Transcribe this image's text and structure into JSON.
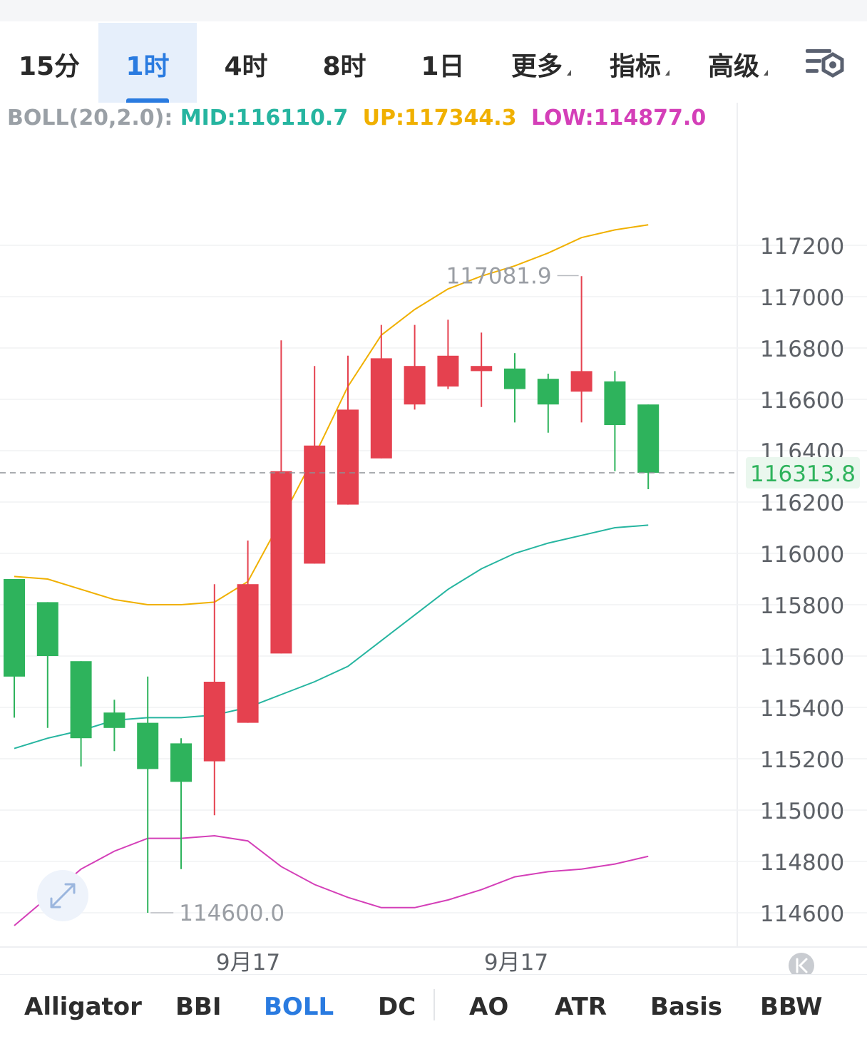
{
  "toolbar": {
    "tabs": [
      {
        "label": "15分"
      },
      {
        "label": "1时"
      },
      {
        "label": "4时"
      },
      {
        "label": "8时"
      },
      {
        "label": "1日"
      },
      {
        "label": "更多"
      },
      {
        "label": "指标"
      },
      {
        "label": "高级"
      }
    ],
    "active_tab": "1时"
  },
  "legend": {
    "name": "BOLL(20,2.0):",
    "mid": "MID:116110.7",
    "up": "UP:117344.3",
    "low": "LOW:114877.0"
  },
  "colors": {
    "up_candle": "#e5414f",
    "down_candle": "#2eb35c",
    "boll_mid": "#26b5a0",
    "boll_up": "#f0b000",
    "boll_low": "#d43fb8",
    "accent": "#2a7be0"
  },
  "chart_data": {
    "type": "candlestick",
    "ylim": [
      114550,
      117480
    ],
    "y_ticks": [
      117200,
      117000,
      116800,
      116600,
      116400,
      116200,
      116000,
      115800,
      115600,
      115400,
      115200,
      115000,
      114800,
      114600
    ],
    "x_labels": [
      "9月17",
      "9月17"
    ],
    "current_price": 116313.8,
    "current_price_label": "116313.8",
    "high_marker": {
      "value": 117081.9,
      "label": "117081.9"
    },
    "low_marker": {
      "value": 114600.0,
      "label": "114600.0"
    },
    "candles": [
      {
        "o": 115900,
        "h": 115900,
        "l": 115360,
        "c": 115520
      },
      {
        "o": 115810,
        "h": 115810,
        "l": 115320,
        "c": 115600
      },
      {
        "o": 115580,
        "h": 115580,
        "l": 115170,
        "c": 115280
      },
      {
        "o": 115380,
        "h": 115430,
        "l": 115230,
        "c": 115320
      },
      {
        "o": 115340,
        "h": 115520,
        "l": 114600,
        "c": 115160
      },
      {
        "o": 115260,
        "h": 115280,
        "l": 114770,
        "c": 115110
      },
      {
        "o": 115190,
        "h": 115880,
        "l": 114980,
        "c": 115500
      },
      {
        "o": 115340,
        "h": 116050,
        "l": 115340,
        "c": 115880
      },
      {
        "o": 115610,
        "h": 116830,
        "l": 115610,
        "c": 116320
      },
      {
        "o": 115960,
        "h": 116730,
        "l": 115960,
        "c": 116420
      },
      {
        "o": 116190,
        "h": 116770,
        "l": 116190,
        "c": 116560
      },
      {
        "o": 116370,
        "h": 116890,
        "l": 116370,
        "c": 116760
      },
      {
        "o": 116580,
        "h": 116890,
        "l": 116560,
        "c": 116730
      },
      {
        "o": 116650,
        "h": 116910,
        "l": 116640,
        "c": 116770
      },
      {
        "o": 116710,
        "h": 116860,
        "l": 116570,
        "c": 116730
      },
      {
        "o": 116720,
        "h": 116780,
        "l": 116510,
        "c": 116640
      },
      {
        "o": 116680,
        "h": 116700,
        "l": 116470,
        "c": 116580
      },
      {
        "o": 116630,
        "h": 117080,
        "l": 116510,
        "c": 116710
      },
      {
        "o": 116670,
        "h": 116710,
        "l": 116320,
        "c": 116500
      },
      {
        "o": 116580,
        "h": 116580,
        "l": 116250,
        "c": 116314
      }
    ],
    "boll_mid": [
      115240,
      115280,
      115310,
      115350,
      115360,
      115360,
      115370,
      115400,
      115450,
      115500,
      115560,
      115660,
      115760,
      115860,
      115940,
      116000,
      116040,
      116070,
      116100,
      116110
    ],
    "boll_up": [
      115910,
      115900,
      115860,
      115820,
      115800,
      115800,
      115810,
      115890,
      116130,
      116380,
      116650,
      116850,
      116950,
      117030,
      117080,
      117120,
      117170,
      117230,
      117260,
      117280
    ],
    "boll_low": [
      114550,
      114660,
      114770,
      114840,
      114890,
      114890,
      114900,
      114880,
      114780,
      114710,
      114660,
      114620,
      114620,
      114650,
      114690,
      114740,
      114760,
      114770,
      114790,
      114820
    ]
  },
  "bottom_tabs": [
    {
      "label": "Alligator"
    },
    {
      "label": "BBI"
    },
    {
      "label": "BOLL"
    },
    {
      "label": "DC"
    },
    {
      "label": "AO"
    },
    {
      "label": "ATR"
    },
    {
      "label": "Basis"
    },
    {
      "label": "BBW"
    }
  ],
  "active_bottom_tab": "BOLL"
}
